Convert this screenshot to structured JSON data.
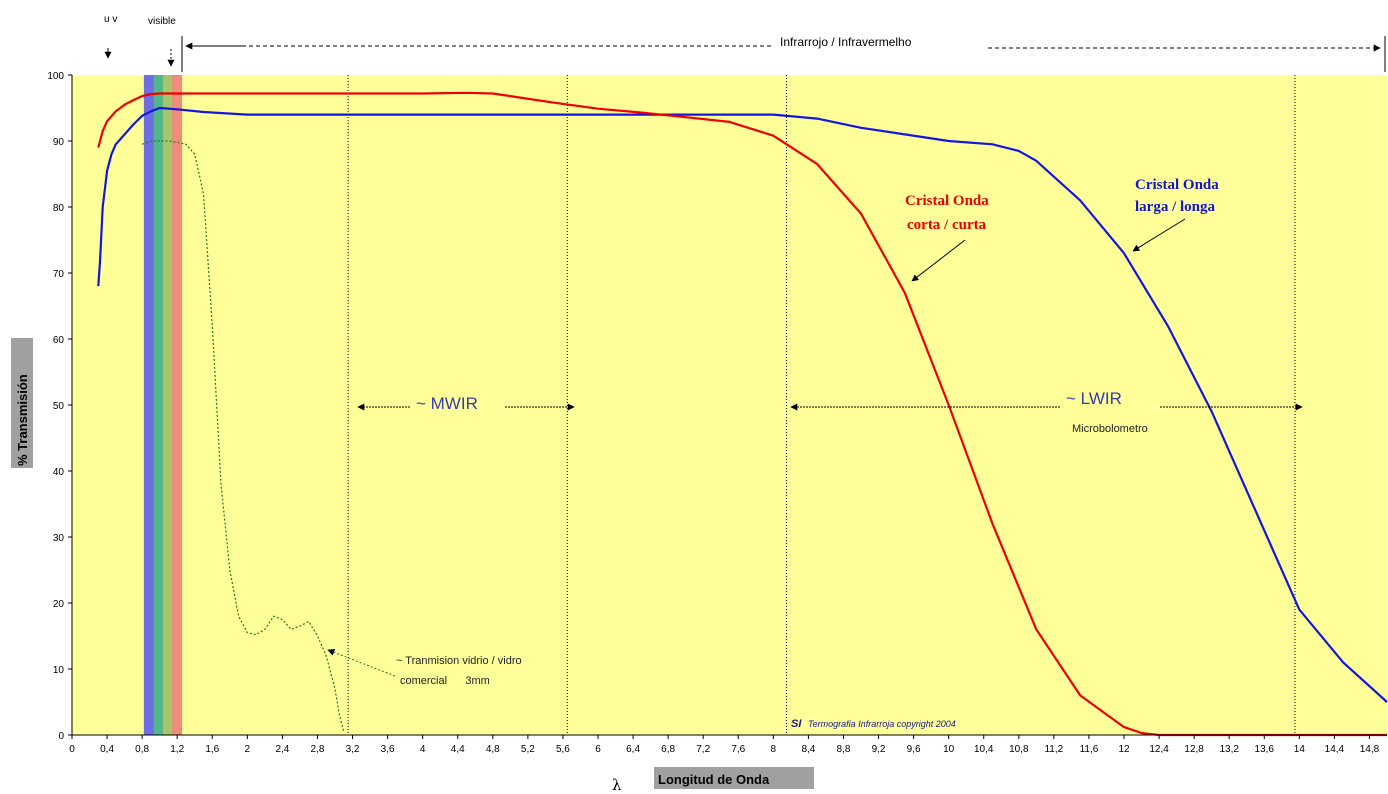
{
  "chart_data": {
    "type": "line",
    "xlabel": "Longitud de Onda",
    "xlabel_symbol": "λ",
    "ylabel": "% Transmisión",
    "xlim": [
      0,
      15
    ],
    "ylim": [
      0,
      100
    ],
    "y_ticks": [
      "0",
      "10",
      "20",
      "30",
      "40",
      "50",
      "60",
      "70",
      "80",
      "90",
      "100"
    ],
    "x_ticks": [
      {
        "v": 0,
        "t": "0"
      },
      {
        "v": 0.4,
        "t": "0,4"
      },
      {
        "v": 0.8,
        "t": "0,8"
      },
      {
        "v": 1.2,
        "t": "1,2"
      },
      {
        "v": 1.6,
        "t": "1,6"
      },
      {
        "v": 2,
        "t": "2"
      },
      {
        "v": 2.4,
        "t": "2,4"
      },
      {
        "v": 2.8,
        "t": "2,8"
      },
      {
        "v": 3.2,
        "t": "3,2"
      },
      {
        "v": 3.6,
        "t": "3,6"
      },
      {
        "v": 4,
        "t": "4"
      },
      {
        "v": 4.4,
        "t": "4,4"
      },
      {
        "v": 4.8,
        "t": "4,8"
      },
      {
        "v": 5.2,
        "t": "5,2"
      },
      {
        "v": 5.6,
        "t": "5,6"
      },
      {
        "v": 6,
        "t": "6"
      },
      {
        "v": 6.4,
        "t": "6,4"
      },
      {
        "v": 6.8,
        "t": "6,8"
      },
      {
        "v": 7.2,
        "t": "7,2"
      },
      {
        "v": 7.6,
        "t": "7,6"
      },
      {
        "v": 8,
        "t": "8"
      },
      {
        "v": 8.4,
        "t": "8,4"
      },
      {
        "v": 8.8,
        "t": "8,8"
      },
      {
        "v": 9.2,
        "t": "9,2"
      },
      {
        "v": 9.6,
        "t": "9,6"
      },
      {
        "v": 10,
        "t": "10"
      },
      {
        "v": 10.4,
        "t": "10,4"
      },
      {
        "v": 10.8,
        "t": "10,8"
      },
      {
        "v": 11.2,
        "t": "11,2"
      },
      {
        "v": 11.6,
        "t": "11,6"
      },
      {
        "v": 12,
        "t": "12"
      },
      {
        "v": 12.4,
        "t": "12,4"
      },
      {
        "v": 12.8,
        "t": "12,8"
      },
      {
        "v": 13.2,
        "t": "13,2"
      },
      {
        "v": 13.6,
        "t": "13,6"
      },
      {
        "v": 14,
        "t": "14"
      },
      {
        "v": 14.4,
        "t": "14,4"
      },
      {
        "v": 14.8,
        "t": "14,8"
      }
    ],
    "grid": false,
    "background_color": "#ffff99",
    "vertical_markers": [
      3.15,
      5.65,
      8.15,
      13.95
    ],
    "visible_band": {
      "x_range": [
        0.82,
        1.25
      ],
      "colors": [
        "#5555ee",
        "#33aa88",
        "#99bb66",
        "#ee7777"
      ]
    },
    "series": [
      {
        "name": "Cristal Onda larga / longa",
        "color": "#1515dd",
        "x": [
          0.3,
          0.32,
          0.35,
          0.4,
          0.45,
          0.5,
          0.6,
          0.7,
          0.8,
          0.9,
          1.0,
          1.2,
          1.5,
          2.0,
          3.0,
          4.0,
          5.0,
          6.0,
          7.0,
          8.0,
          8.5,
          9.0,
          9.5,
          10.0,
          10.5,
          10.8,
          11.0,
          11.5,
          12.0,
          12.5,
          13.0,
          13.5,
          14.0,
          14.5,
          15.0
        ],
        "y": [
          68,
          72,
          80,
          85.5,
          88,
          89.5,
          91,
          92.5,
          93.8,
          94.5,
          95,
          94.8,
          94.4,
          94,
          94,
          94,
          94,
          94,
          94,
          94,
          93.4,
          92,
          91,
          90,
          89.5,
          88.5,
          87,
          81,
          73,
          62,
          49,
          34,
          19,
          11,
          5
        ]
      },
      {
        "name": "Cristal Onda corta / curta",
        "color": "#ee0000",
        "x": [
          0.3,
          0.35,
          0.4,
          0.5,
          0.6,
          0.7,
          0.8,
          0.9,
          1.0,
          1.2,
          2.0,
          3.0,
          4.0,
          4.5,
          4.8,
          5.0,
          5.5,
          6.0,
          6.5,
          7.0,
          7.5,
          8.0,
          8.5,
          9.0,
          9.5,
          10.0,
          10.5,
          11.0,
          11.5,
          12.0,
          12.2,
          12.4,
          13.0,
          14.0,
          15.0
        ],
        "y": [
          89,
          91.5,
          93,
          94.5,
          95.5,
          96.2,
          96.8,
          97.1,
          97.2,
          97.2,
          97.2,
          97.2,
          97.2,
          97.3,
          97.2,
          96.8,
          95.8,
          94.9,
          94.3,
          93.6,
          92.9,
          90.8,
          86.5,
          79,
          67,
          50,
          32,
          16,
          6,
          1.2,
          0.3,
          0,
          0,
          0,
          0
        ]
      },
      {
        "name": "~ Tranmision vidrio / vidro comercial 3mm",
        "color": "#1e7a1e",
        "x": [
          0.8,
          0.9,
          1.0,
          1.1,
          1.2,
          1.3,
          1.4,
          1.5,
          1.6,
          1.7,
          1.8,
          1.9,
          2.0,
          2.1,
          2.2,
          2.3,
          2.4,
          2.5,
          2.6,
          2.7,
          2.8,
          2.9,
          3.0,
          3.05,
          3.1
        ],
        "y": [
          89.5,
          90,
          90,
          90,
          89.8,
          89.5,
          88,
          82,
          62,
          38,
          25,
          18,
          15.5,
          15.2,
          16,
          18,
          17.5,
          16,
          16.5,
          17.2,
          15,
          12,
          7,
          3,
          0.5
        ]
      }
    ],
    "annotations": {
      "uv": "u v",
      "visible": "visible",
      "infrared": "Infrarrojo / Infravermelho",
      "mwir": "~ MWIR",
      "lwir": "~ LWIR",
      "microbolometro": "Microbolometro",
      "short_wave_1": "Cristal Onda",
      "short_wave_2": "corta / curta",
      "long_wave_1": "Cristal Onda",
      "long_wave_2": "larga / longa",
      "glass_1": "~ Tranmision vidrio / vidro",
      "glass_2": "comercial      3mm",
      "copyright_prefix": "SI",
      "copyright": "Termografia Infrarroja copyright 2004"
    }
  }
}
